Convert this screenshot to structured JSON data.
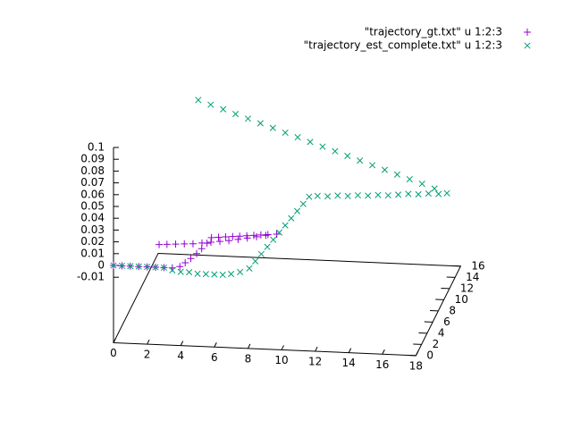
{
  "chart_data": {
    "type": "scatter3d",
    "xlim": [
      0,
      18
    ],
    "ylim": [
      0,
      16
    ],
    "zlim": [
      -0.01,
      0.1
    ],
    "xticks": [
      0,
      2,
      4,
      6,
      8,
      10,
      12,
      14,
      16,
      18
    ],
    "yticks": [
      0,
      2,
      4,
      6,
      8,
      10,
      12,
      14,
      16
    ],
    "zticks": [
      -0.01,
      0,
      0.01,
      0.02,
      0.03,
      0.04,
      0.05,
      0.06,
      0.07,
      0.08,
      0.09,
      0.1
    ],
    "legend": "top-right",
    "series": [
      {
        "name": "\"trajectory_gt.txt\" u 1:2:3",
        "color": "#9400d3",
        "marker": "plus",
        "x": [
          0,
          0.5,
          1,
          1.5,
          2,
          2.5,
          3,
          3.5,
          3.9,
          4.1,
          4.3,
          4.5,
          4.65,
          4.8,
          4.9,
          5.3,
          5.7,
          6.1,
          6.5,
          6.9,
          7.3,
          7.7,
          8.1,
          8.6,
          2.05,
          2.5,
          3,
          3.5,
          4,
          4.5,
          5,
          5.5,
          6,
          6.5,
          7,
          7.5,
          8,
          8.6
        ],
        "y": [
          0,
          0,
          0,
          0,
          0,
          0,
          0,
          0,
          0.3,
          1,
          1.8,
          2.7,
          3.6,
          4.6,
          5.6,
          5.72,
          5.84,
          5.96,
          6.08,
          6.2,
          6.32,
          6.44,
          6.56,
          6.7,
          4,
          4.1,
          4.2,
          4.3,
          4.4,
          4.6,
          4.8,
          5,
          5.2,
          5.5,
          5.8,
          6.1,
          6.4,
          6.7
        ],
        "z": [
          0,
          0,
          0,
          0,
          0,
          0,
          0,
          0,
          0,
          0,
          0,
          0,
          0,
          0,
          0,
          0,
          0,
          0,
          0,
          0,
          0,
          0,
          0,
          0,
          0,
          0,
          0,
          0,
          0,
          0,
          0,
          0,
          0,
          0,
          0,
          0,
          0,
          0
        ]
      },
      {
        "name": "\"trajectory_est_complete.txt\" u 1:2:3",
        "color": "#009e73",
        "marker": "cross",
        "x": [
          0,
          0.5,
          1,
          1.5,
          2,
          2.5,
          3,
          3.5,
          4,
          4.5,
          5,
          5.5,
          6,
          6.5,
          7,
          7.5,
          8,
          8.14,
          8.28,
          8.42,
          8.56,
          8.7,
          8.84,
          8.98,
          9.12,
          9.26,
          9.4,
          9.9,
          10.5,
          11.1,
          11.7,
          12.3,
          12.9,
          13.5,
          14.1,
          14.7,
          15.3,
          15.9,
          16.5,
          17.1,
          17.6,
          2.8,
          3.54,
          4.28,
          5.02,
          5.76,
          6.5,
          7.24,
          7.98,
          8.72,
          9.46,
          10.2,
          10.94,
          11.68,
          12.42,
          13.16,
          13.9,
          14.64,
          15.38,
          16.12,
          16.86
        ],
        "y": [
          0,
          0,
          0,
          0,
          0,
          0,
          0,
          0,
          0,
          0,
          0,
          0,
          0,
          0,
          0,
          0.2,
          0.5,
          1.8,
          3.1,
          4.4,
          5.7,
          7,
          8.3,
          9.6,
          10.9,
          12.2,
          13.5,
          13.5,
          13.5,
          13.5,
          13.5,
          13.5,
          13.5,
          13.5,
          13.5,
          13.5,
          13.5,
          13.5,
          13.5,
          13.5,
          13.5,
          13.5,
          13.5,
          13.5,
          13.5,
          13.5,
          13.5,
          13.5,
          13.5,
          13.5,
          13.5,
          13.5,
          13.5,
          13.5,
          13.5,
          13.5,
          13.5,
          13.5,
          13.5,
          13.5,
          13.5
        ],
        "z": [
          0,
          0,
          0,
          0,
          0,
          0,
          0,
          -0.002,
          -0.003,
          -0.003,
          -0.004,
          -0.004,
          -0.004,
          -0.004,
          -0.003,
          -0.002,
          0,
          0,
          0,
          0,
          0,
          0,
          0,
          0,
          0,
          0,
          0,
          0.001,
          0.001,
          0.002,
          0.002,
          0.003,
          0.003,
          0.004,
          0.004,
          0.005,
          0.006,
          0.006,
          0.007,
          0.007,
          0.008,
          0.078,
          0.0745,
          0.071,
          0.0675,
          0.064,
          0.0605,
          0.057,
          0.0535,
          0.05,
          0.0465,
          0.043,
          0.0395,
          0.036,
          0.0325,
          0.029,
          0.0255,
          0.022,
          0.0185,
          0.015,
          0.0115
        ]
      }
    ]
  }
}
